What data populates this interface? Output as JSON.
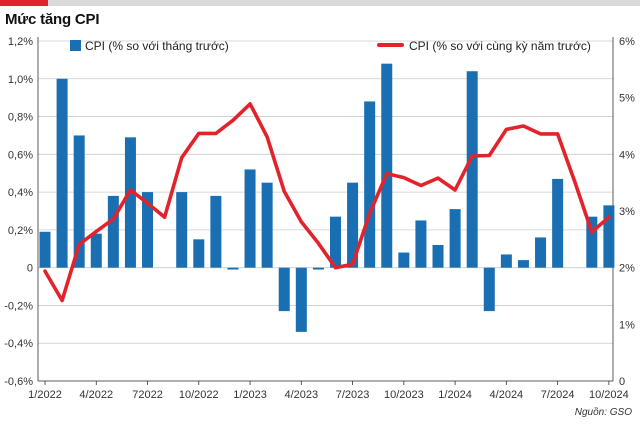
{
  "header": {
    "title": "Mức tăng CPI"
  },
  "source": "Nguồn: GSO",
  "colors": {
    "accent": "#e3232c",
    "bar": "#1a6fb3",
    "line": "#e3232c",
    "grid": "#cccccc",
    "axis": "#333333"
  },
  "chart_data": {
    "type": "bar+line",
    "title": "Mức tăng CPI",
    "x_tick_labels": [
      "1/2022",
      "4/2022",
      "72022",
      "10/2022",
      "1/2023",
      "4/2023",
      "7/2023",
      "10/2023",
      "1/2024",
      "4/2024",
      "7/2024",
      "10/2024"
    ],
    "x_tick_index": [
      0,
      3,
      6,
      9,
      12,
      15,
      18,
      21,
      24,
      27,
      30,
      33
    ],
    "left_axis": {
      "ticks": [
        "1,2%",
        "1,0%",
        "0,8%",
        "0,6%",
        "0,4%",
        "0,2%",
        "0",
        "-0,2%",
        "-0,4%",
        "-0,6%"
      ],
      "range": [
        -0.6,
        1.2
      ]
    },
    "right_axis": {
      "ticks": [
        "6%",
        "5%",
        "4%",
        "3%",
        "2%",
        "1%",
        "0"
      ],
      "range": [
        0,
        6
      ]
    },
    "series": [
      {
        "name": "CPI (% so với tháng trước)",
        "type": "bar",
        "axis": "left",
        "values": [
          0.19,
          1.0,
          0.7,
          0.18,
          0.38,
          0.69,
          0.4,
          null,
          0.4,
          0.15,
          0.38,
          -0.01,
          0.52,
          0.45,
          -0.23,
          -0.34,
          -0.01,
          0.27,
          0.45,
          0.88,
          1.08,
          0.08,
          0.25,
          0.12,
          0.31,
          1.04,
          -0.23,
          0.07,
          0.04,
          0.16,
          0.47,
          null,
          0.27,
          0.33
        ]
      },
      {
        "name": "CPI (% so với cùng kỳ năm trước)",
        "type": "line",
        "axis": "right",
        "values": [
          1.94,
          1.42,
          2.41,
          2.64,
          2.86,
          3.37,
          3.14,
          2.89,
          3.94,
          4.37,
          4.37,
          4.6,
          4.89,
          4.31,
          3.35,
          2.81,
          2.43,
          2.0,
          2.06,
          2.96,
          3.66,
          3.59,
          3.45,
          3.58,
          3.37,
          3.97,
          3.98,
          4.44,
          4.5,
          4.36,
          4.36,
          3.52,
          2.63,
          2.89
        ]
      }
    ]
  }
}
